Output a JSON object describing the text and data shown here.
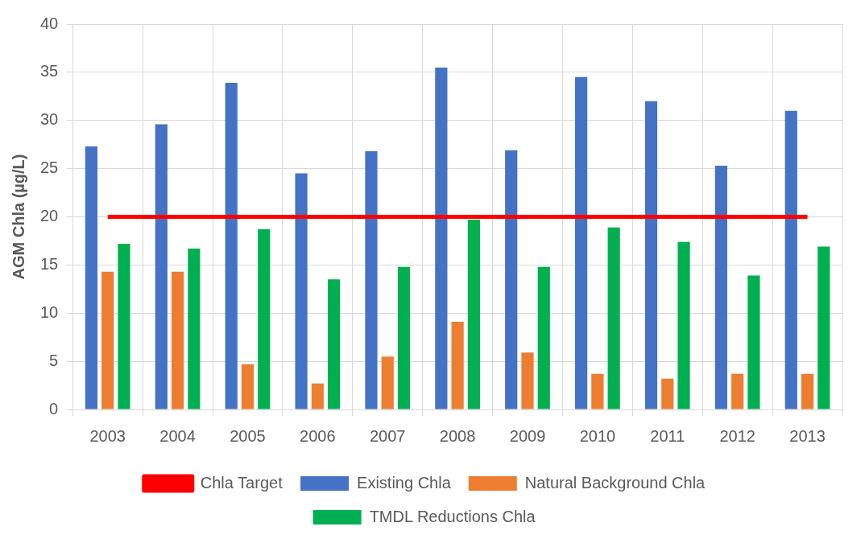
{
  "chart_data": {
    "type": "bar",
    "ylabel": "AGM Chla (µg/L)",
    "categories": [
      "2003",
      "2004",
      "2005",
      "2006",
      "2007",
      "2008",
      "2009",
      "2010",
      "2011",
      "2012",
      "2013"
    ],
    "series": [
      {
        "name": "Existing Chla",
        "color": "#4472c4",
        "values": [
          27.3,
          29.6,
          33.9,
          24.5,
          26.8,
          35.5,
          26.9,
          34.5,
          32.0,
          25.3,
          31.0
        ]
      },
      {
        "name": "Natural Background Chla",
        "color": "#ed7d31",
        "values": [
          14.3,
          14.3,
          4.7,
          2.7,
          5.5,
          9.1,
          5.9,
          3.7,
          3.2,
          3.7,
          3.7
        ]
      },
      {
        "name": "TMDL Reductions Chla",
        "color": "#00b050",
        "values": [
          17.2,
          16.7,
          18.7,
          13.5,
          14.8,
          19.7,
          14.8,
          18.9,
          17.4,
          13.9,
          16.9
        ]
      },
      {
        "name": "Chla Target",
        "type": "line",
        "color": "#ff0000",
        "values": [
          20,
          20,
          20,
          20,
          20,
          20,
          20,
          20,
          20,
          20,
          20
        ]
      }
    ],
    "ylim": [
      0,
      40
    ],
    "yticks": [
      0,
      5,
      10,
      15,
      20,
      25,
      30,
      35,
      40
    ],
    "grid": true,
    "legend": "bottom"
  }
}
